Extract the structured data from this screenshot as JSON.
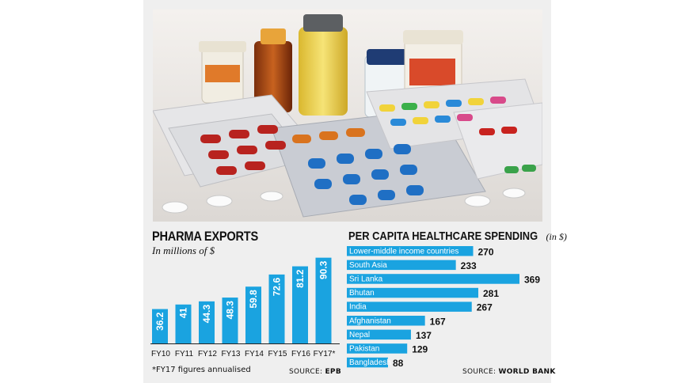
{
  "exports_panel": {
    "title": "PHARMA EXPORTS",
    "subtitle": "In millions of $",
    "footnote": "*FY17 figures annualised",
    "source_label": "SOURCE:",
    "source_name": "EPB"
  },
  "spending_panel": {
    "title": "PER CAPITA HEALTHCARE SPENDING",
    "unit": "(in $)",
    "source_label": "SOURCE:",
    "source_name": "WORLD BANK"
  },
  "colors": {
    "bar": "#1aa3e0",
    "background": "#efefef",
    "text": "#111111"
  },
  "photo": {
    "description": "pharmaceutical-products-photo"
  },
  "chart_data": [
    {
      "type": "bar",
      "title": "PHARMA EXPORTS",
      "subtitle": "In millions of $",
      "categories": [
        "FY10",
        "FY11",
        "FY12",
        "FY13",
        "FY14",
        "FY15",
        "FY16",
        "FY17*"
      ],
      "values": [
        36.2,
        41,
        44.3,
        48.3,
        59.8,
        72.6,
        81.2,
        90.3
      ],
      "value_labels": [
        "36.2",
        "41",
        "44.3",
        "48.3",
        "59.8",
        "72.6",
        "81.2",
        "90.3"
      ],
      "ylim": [
        0,
        100
      ]
    },
    {
      "type": "bar",
      "orientation": "horizontal",
      "title": "PER CAPITA HEALTHCARE SPENDING",
      "unit": "(in $)",
      "categories": [
        "Lower-middle income countries",
        "South Asia",
        "Sri Lanka",
        "Bhutan",
        "India",
        "Afghanistan",
        "Nepal",
        "Pakistan",
        "Bangladesh"
      ],
      "values": [
        270,
        233,
        369,
        281,
        267,
        167,
        137,
        129,
        88
      ],
      "value_labels": [
        "270",
        "233",
        "369",
        "281",
        "267",
        "167",
        "137",
        "129",
        "88"
      ],
      "xlim": [
        0,
        369
      ]
    }
  ]
}
